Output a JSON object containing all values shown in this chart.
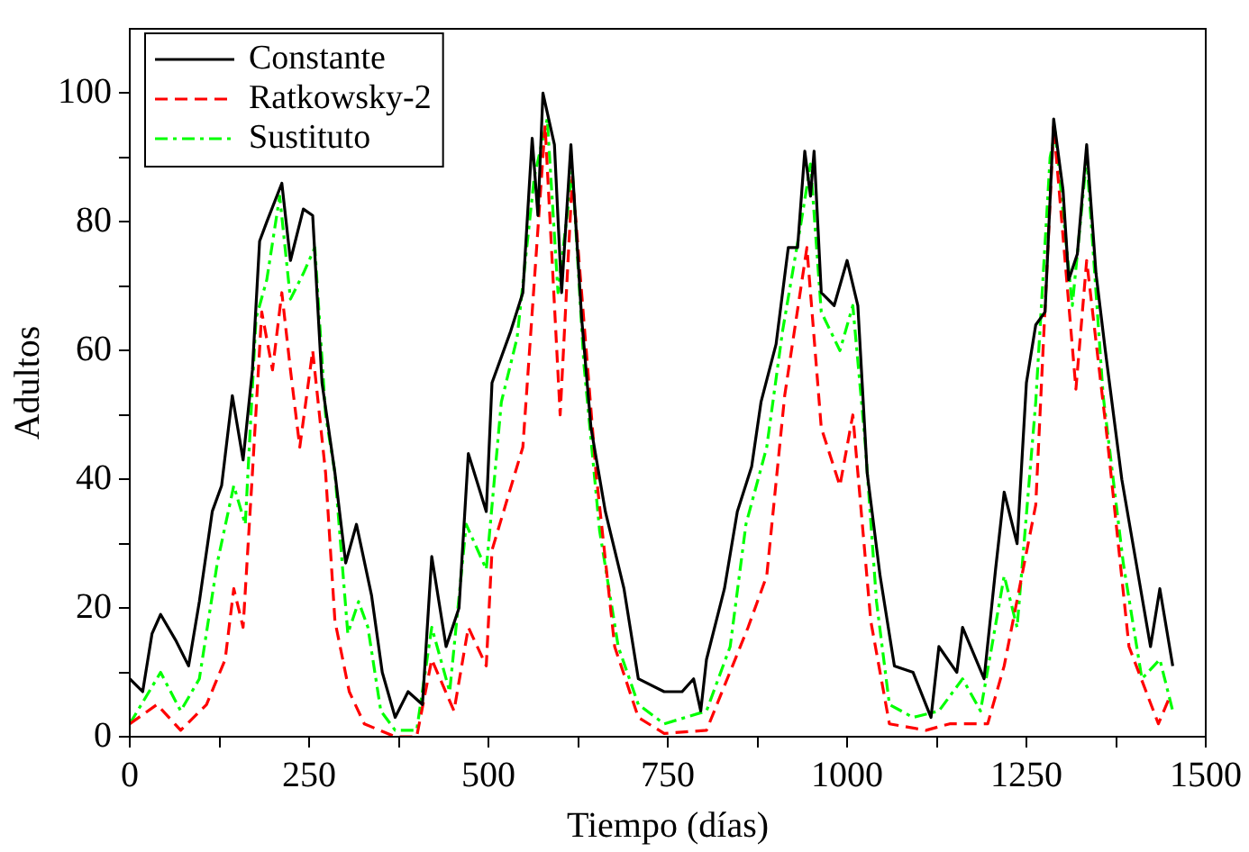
{
  "chart_data": {
    "type": "line",
    "xlabel": "Tiempo (días)",
    "ylabel": "Adultos",
    "xlim": [
      0,
      1500
    ],
    "ylim": [
      0,
      110
    ],
    "xticks": [
      0,
      {
        "value": 125,
        "label": null
      },
      250,
      {
        "value": 375,
        "label": null
      },
      500,
      {
        "value": 625,
        "label": null
      },
      750,
      {
        "value": 875,
        "label": null
      },
      1000,
      {
        "value": 1125,
        "label": null
      },
      1250,
      {
        "value": 1375,
        "label": null
      },
      1500
    ],
    "yticks": [
      0,
      {
        "value": 10,
        "label": null
      },
      20,
      {
        "value": 30,
        "label": null
      },
      40,
      {
        "value": 50,
        "label": null
      },
      60,
      {
        "value": 70,
        "label": null
      },
      80,
      {
        "value": 90,
        "label": null
      },
      100
    ],
    "grid": false,
    "legend": "top left",
    "marker": "none",
    "series": [
      {
        "name": "Constante",
        "color": "#000000",
        "line_style": "solid",
        "x": [
          0,
          18,
          31,
          43,
          64,
          82,
          97,
          115,
          128,
          143,
          158,
          171,
          181,
          191,
          212,
          224,
          242,
          255,
          268,
          286,
          301,
          316,
          337,
          352,
          370,
          388,
          408,
          421,
          441,
          459,
          472,
          497,
          505,
          531,
          548,
          561,
          569,
          576,
          592,
          602,
          615,
          630,
          643,
          663,
          689,
          709,
          745,
          770,
          786,
          796,
          804,
          829,
          847,
          867,
          880,
          901,
          918,
          931,
          941,
          949,
          954,
          964,
          982,
          1000,
          1015,
          1028,
          1046,
          1066,
          1092,
          1117,
          1128,
          1153,
          1161,
          1191,
          1207,
          1219,
          1237,
          1250,
          1263,
          1276,
          1288,
          1301,
          1309,
          1321,
          1334,
          1347,
          1360,
          1383,
          1403,
          1423,
          1436,
          1454
        ],
        "values": [
          9,
          7,
          16,
          19,
          15,
          11,
          21,
          35,
          39,
          53,
          43,
          57,
          77,
          80,
          86,
          74,
          82,
          81,
          55,
          41,
          27,
          33,
          22,
          10,
          3,
          7,
          5,
          28,
          14,
          20,
          44,
          35,
          55,
          63,
          69,
          93,
          81,
          100,
          92,
          69,
          92,
          65,
          48,
          35,
          23,
          9,
          7,
          7,
          9,
          4,
          12,
          23,
          35,
          42,
          52,
          61,
          76,
          76,
          91,
          84,
          91,
          69,
          67,
          74,
          67,
          41,
          25,
          11,
          10,
          3,
          14,
          10,
          17,
          9,
          26,
          38,
          30,
          55,
          64,
          66,
          96,
          85,
          71,
          75,
          92,
          72,
          60,
          40,
          27,
          14,
          23,
          11
        ]
      },
      {
        "name": "Ratkowsky-2",
        "color": "#ff0000",
        "line_style": "dashed",
        "x": [
          0,
          38,
          71,
          107,
          133,
          145,
          158,
          171,
          184,
          199,
          212,
          224,
          237,
          255,
          273,
          286,
          306,
          327,
          370,
          400,
          421,
          452,
          472,
          497,
          505,
          548,
          579,
          600,
          617,
          650,
          676,
          709,
          745,
          804,
          862,
          888,
          913,
          944,
          964,
          990,
          1008,
          1033,
          1059,
          1110,
          1143,
          1161,
          1196,
          1219,
          1263,
          1288,
          1319,
          1334,
          1363,
          1393,
          1434,
          1449
        ],
        "values": [
          2,
          5,
          1,
          5,
          12,
          23,
          17,
          41,
          66,
          57,
          69,
          57,
          45,
          60,
          41,
          18,
          7,
          2,
          0,
          0,
          12,
          4,
          17,
          11,
          29,
          45,
          95,
          50,
          87,
          41,
          14,
          3,
          0.5,
          1,
          17,
          25,
          53,
          76,
          48,
          39,
          50,
          18,
          2,
          1,
          2,
          2,
          2,
          11,
          36,
          95,
          54,
          74,
          46,
          14,
          2,
          6
        ]
      },
      {
        "name": "Sustituto",
        "color": "#00ff00",
        "line_style": "dashdot",
        "x": [
          0,
          43,
          71,
          97,
          122,
          145,
          161,
          176,
          191,
          209,
          224,
          242,
          258,
          273,
          286,
          304,
          319,
          332,
          350,
          370,
          400,
          421,
          446,
          469,
          497,
          518,
          540,
          564,
          582,
          597,
          617,
          633,
          655,
          681,
          709,
          745,
          804,
          837,
          859,
          888,
          910,
          936,
          949,
          964,
          990,
          1008,
          1025,
          1041,
          1059,
          1092,
          1128,
          1161,
          1186,
          1219,
          1237,
          1263,
          1283,
          1290,
          1314,
          1334,
          1357,
          1385,
          1411,
          1436,
          1454
        ],
        "values": [
          2,
          10,
          4,
          9,
          27,
          39,
          33,
          65,
          71,
          84,
          68,
          72,
          76,
          50,
          41,
          16,
          21,
          17,
          4,
          1,
          1,
          17,
          7,
          33,
          26,
          52,
          62,
          87,
          96,
          69,
          88,
          58,
          32,
          14,
          5,
          2,
          4,
          14,
          33,
          45,
          63,
          80,
          89,
          66,
          60,
          67,
          46,
          21,
          5,
          3,
          4,
          9,
          4,
          25,
          17,
          52,
          90,
          94,
          67,
          90,
          53,
          27,
          9,
          12,
          4
        ]
      }
    ]
  }
}
